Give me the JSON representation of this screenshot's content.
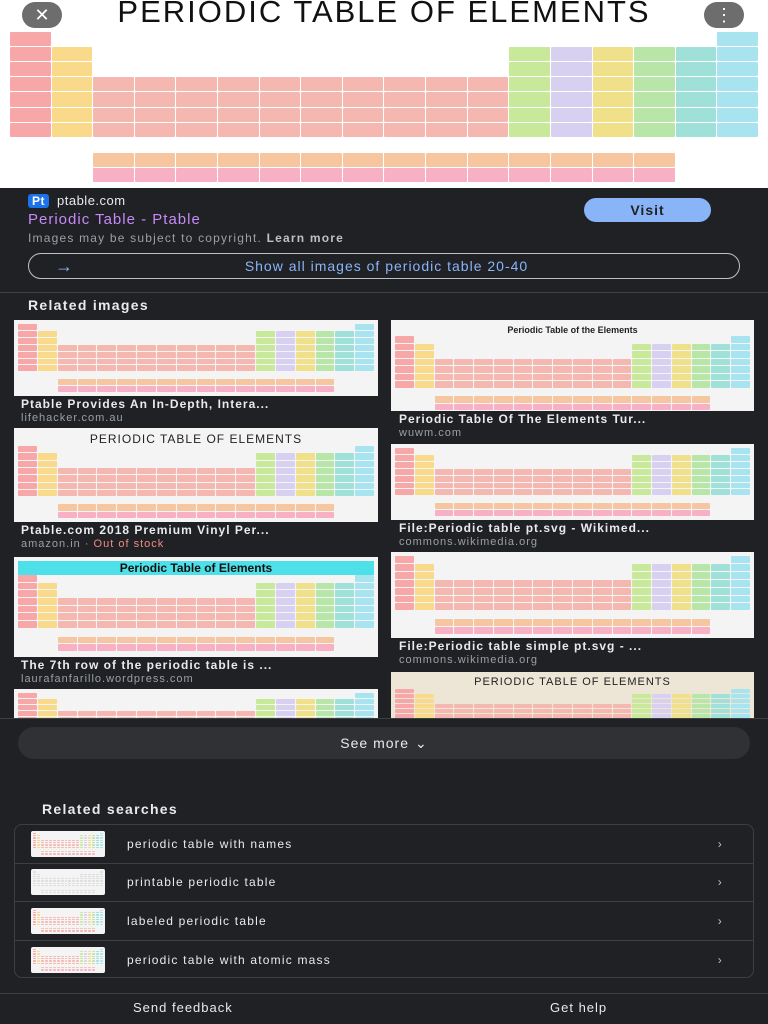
{
  "hero": {
    "title": "PERIODIC TABLE OF ELEMENTS",
    "close_icon": "close-icon",
    "menu_icon": "more-vert-icon"
  },
  "result": {
    "favicon": "Pt",
    "site": "ptable.com",
    "title": "Periodic Table - Ptable",
    "visit_label": "Visit",
    "copyright": "Images may be subject to copyright.",
    "learn_more": "Learn more",
    "show_all": "Show all images of periodic table 20-40"
  },
  "related_images": {
    "heading": "Related images",
    "items": [
      {
        "caption": "Ptable Provides An In-Depth, Intera...",
        "site": "lifehacker.com.au"
      },
      {
        "caption": "Periodic Table Of The Elements Tur...",
        "site": "wuwm.com",
        "thumb_title": "Periodic Table of the Elements"
      },
      {
        "caption": "Ptable.com 2018 Premium Vinyl Per...",
        "site": "amazon.in",
        "status": "Out of stock",
        "thumb_title": "PERIODIC TABLE OF ELEMENTS"
      },
      {
        "caption": "File:Periodic table pt.svg - Wikimed...",
        "site": "commons.wikimedia.org"
      },
      {
        "caption": "The 7th row of the periodic table is ...",
        "site": "laurafanfarillo.wordpress.com",
        "thumb_title": "Periodic Table of Elements"
      },
      {
        "caption": "File:Periodic table simple pt.svg - ...",
        "site": "commons.wikimedia.org"
      },
      {
        "thumb_title": "PERIODIC TABLE OF ELEMENTS"
      }
    ]
  },
  "see_more": "See more",
  "related_searches": {
    "heading": "Related searches",
    "items": [
      {
        "label": "periodic table with names"
      },
      {
        "label": "printable periodic table"
      },
      {
        "label": "labeled periodic table"
      },
      {
        "label": "periodic table with atomic mass"
      }
    ]
  },
  "footer": {
    "feedback": "Send feedback",
    "help": "Get help"
  },
  "colors": {
    "bg": "#202124",
    "link": "#8ab4f8",
    "title": "#c58af9",
    "out_of_stock": "#f28b82"
  }
}
